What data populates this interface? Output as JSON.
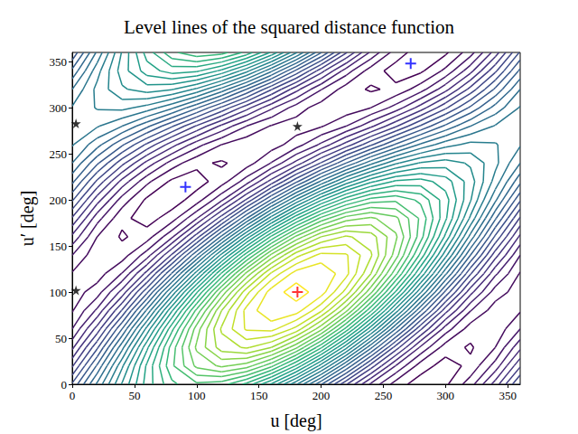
{
  "chart_data": {
    "type": "contour",
    "title": "Level lines of the squared distance function",
    "xlabel": "u [deg]",
    "ylabel": "u′ [deg]",
    "xlim": [
      0,
      360
    ],
    "ylim": [
      0,
      360
    ],
    "xticks": [
      0,
      50,
      100,
      150,
      200,
      250,
      300,
      350
    ],
    "yticks": [
      0,
      50,
      100,
      150,
      200,
      250,
      300,
      350
    ],
    "grid": false,
    "x": [
      0,
      20,
      40,
      60,
      80,
      100,
      120,
      140,
      160,
      180,
      200,
      220,
      240,
      260,
      280,
      300,
      320,
      340,
      360
    ],
    "y": [
      0,
      20,
      40,
      60,
      80,
      100,
      120,
      140,
      160,
      180,
      200,
      220,
      240,
      260,
      280,
      300,
      320,
      340,
      360
    ],
    "z": [
      [
        -0.77,
        0.04,
        0.82,
        1.49,
        1.95,
        2.16,
        2.09,
        1.74,
        1.17,
        0.43,
        -0.38,
        -1.17,
        -1.84,
        -2.3,
        -2.51,
        -2.44,
        -2.09,
        -1.51,
        -0.77
      ],
      [
        -1.23,
        -0.37,
        0.56,
        1.44,
        2.16,
        2.65,
        2.84,
        2.7,
        2.26,
        1.57,
        0.71,
        -0.21,
        -1.09,
        -1.81,
        -2.3,
        -2.49,
        -2.35,
        -1.92,
        -1.23
      ],
      [
        -1.65,
        -0.84,
        0.13,
        1.15,
        2.09,
        2.84,
        3.3,
        3.43,
        3.2,
        2.65,
        1.84,
        0.87,
        -0.15,
        -1.09,
        -1.84,
        -2.3,
        -2.43,
        -2.2,
        -1.65
      ],
      [
        -2.0,
        -1.32,
        -0.4,
        0.67,
        1.74,
        2.7,
        3.43,
        3.83,
        3.87,
        3.53,
        2.86,
        1.93,
        0.87,
        -0.21,
        -1.17,
        -1.9,
        -2.3,
        -2.34,
        -2.0
      ],
      [
        -2.22,
        -1.76,
        -0.98,
        0.04,
        1.17,
        2.26,
        3.2,
        3.87,
        4.18,
        4.1,
        3.64,
        2.86,
        1.84,
        0.71,
        -0.38,
        -1.32,
        -1.99,
        -2.3,
        -2.22
      ],
      [
        -2.3,
        -2.1,
        -1.53,
        -0.65,
        0.43,
        1.57,
        2.65,
        3.53,
        4.1,
        4.3,
        4.1,
        3.53,
        2.65,
        1.57,
        0.43,
        -0.65,
        -1.53,
        -2.1,
        -2.3
      ],
      [
        -2.22,
        -2.3,
        -1.99,
        -1.32,
        -0.38,
        0.71,
        1.84,
        2.86,
        3.64,
        4.1,
        4.18,
        3.87,
        3.2,
        2.26,
        1.17,
        0.04,
        -0.98,
        -1.76,
        -2.22
      ],
      [
        -2.0,
        -2.34,
        -2.3,
        -1.9,
        -1.17,
        -0.21,
        0.87,
        1.93,
        2.86,
        3.53,
        3.87,
        3.83,
        3.43,
        2.7,
        1.74,
        0.67,
        -0.4,
        -1.32,
        -2.0
      ],
      [
        -1.65,
        -2.2,
        -2.43,
        -2.3,
        -1.84,
        -1.09,
        -0.15,
        0.87,
        1.84,
        2.65,
        3.2,
        3.43,
        3.3,
        2.84,
        2.09,
        1.15,
        0.13,
        -0.84,
        -1.65
      ],
      [
        -1.23,
        -1.92,
        -2.35,
        -2.49,
        -2.3,
        -1.81,
        -1.09,
        -0.21,
        0.71,
        1.57,
        2.26,
        2.7,
        2.84,
        2.65,
        2.16,
        1.44,
        0.56,
        -0.37,
        -1.23
      ],
      [
        -0.77,
        -1.51,
        -2.09,
        -2.44,
        -2.51,
        -2.3,
        -1.84,
        -1.17,
        -0.38,
        0.43,
        1.17,
        1.74,
        2.09,
        2.16,
        1.95,
        1.49,
        0.82,
        0.04,
        -0.77
      ],
      [
        -0.35,
        -1.04,
        -1.67,
        -2.15,
        -2.44,
        -2.49,
        -2.3,
        -1.9,
        -1.32,
        -0.65,
        0.04,
        0.67,
        1.15,
        1.44,
        1.49,
        1.3,
        0.9,
        0.32,
        -0.35
      ],
      [
        0.0,
        -0.56,
        -1.13,
        -1.67,
        -2.09,
        -2.35,
        -2.43,
        -2.3,
        -1.99,
        -1.53,
        -0.98,
        -0.4,
        0.13,
        0.56,
        0.82,
        0.9,
        0.77,
        0.46,
        0.0
      ],
      [
        0.22,
        -0.12,
        -0.56,
        -1.04,
        -1.51,
        -1.92,
        -2.2,
        -2.34,
        -2.3,
        -2.1,
        -1.76,
        -1.32,
        -0.84,
        -0.37,
        0.04,
        0.32,
        0.46,
        0.42,
        0.22
      ],
      [
        0.3,
        0.22,
        0.0,
        -0.35,
        -0.77,
        -1.23,
        -1.65,
        -2.0,
        -2.22,
        -2.3,
        -2.22,
        -2.0,
        -1.65,
        -1.23,
        -0.77,
        -0.35,
        0.0,
        0.22,
        0.3
      ],
      [
        0.22,
        0.42,
        0.46,
        0.32,
        0.04,
        -0.37,
        -0.84,
        -1.32,
        -1.76,
        -2.1,
        -2.3,
        -2.34,
        -2.2,
        -1.92,
        -1.51,
        -1.04,
        -0.56,
        -0.12,
        0.22
      ],
      [
        0.0,
        0.46,
        0.77,
        0.9,
        0.82,
        0.56,
        0.13,
        -0.4,
        -0.98,
        -1.53,
        -1.99,
        -2.3,
        -2.43,
        -2.35,
        -2.09,
        -1.67,
        -1.13,
        -0.56,
        0.0
      ],
      [
        -0.35,
        0.32,
        0.9,
        1.3,
        1.49,
        1.44,
        1.15,
        0.67,
        0.04,
        -0.65,
        -1.32,
        -1.9,
        -2.3,
        -2.49,
        -2.44,
        -2.15,
        -1.67,
        -1.04,
        -0.35
      ],
      [
        -0.77,
        0.04,
        0.82,
        1.49,
        1.95,
        2.16,
        2.09,
        1.74,
        1.17,
        0.43,
        -0.38,
        -1.17,
        -1.84,
        -2.3,
        -2.51,
        -2.44,
        -2.09,
        -1.51,
        -0.77
      ]
    ],
    "levels": [
      -2.4,
      -2.2,
      -2.0,
      -1.8,
      -1.6,
      -1.4,
      -1.2,
      -1.0,
      -0.8,
      -0.6,
      -0.4,
      -0.2,
      0,
      0.2,
      0.4,
      0.6,
      0.8,
      1.0,
      1.2,
      1.4,
      1.6,
      1.8,
      2.0,
      2.2,
      2.4,
      2.6,
      2.8,
      3.0,
      3.2,
      3.4,
      3.6,
      3.8,
      4.0,
      4.2
    ],
    "series": [
      {
        "type": "scatter",
        "color": "#ff0000",
        "marker": "plus",
        "x": [
          181
        ],
        "y": [
          100
        ]
      },
      {
        "type": "scatter",
        "color": "#0000ff",
        "marker": "plus",
        "x": [
          91,
          272
        ],
        "y": [
          214,
          348
        ]
      },
      {
        "type": "scatter",
        "color": "#000000",
        "marker": "star",
        "x": [
          3,
          181,
          3
        ],
        "y": [
          102,
          280,
          283
        ]
      }
    ]
  }
}
